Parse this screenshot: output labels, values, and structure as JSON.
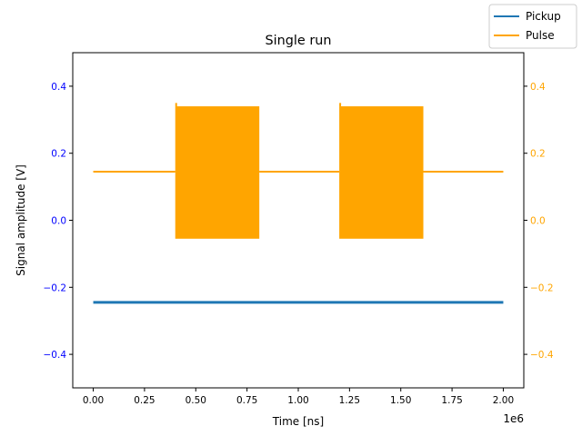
{
  "chart_data": {
    "type": "line",
    "title": "Single run",
    "xlabel": "Time [ns]",
    "ylabel": "Signal amplitude [V]",
    "x_offset_label": "1e6",
    "xlim": [
      -0.1,
      2.1
    ],
    "ylim": [
      -0.5,
      0.5
    ],
    "y2lim": [
      -0.5,
      0.5
    ],
    "x_ticks": [
      0.0,
      0.25,
      0.5,
      0.75,
      1.0,
      1.25,
      1.5,
      1.75,
      2.0
    ],
    "x_tick_labels": [
      "0.00",
      "0.25",
      "0.50",
      "0.75",
      "1.00",
      "1.25",
      "1.50",
      "1.75",
      "2.00"
    ],
    "y_ticks": [
      -0.4,
      -0.2,
      0.0,
      0.2,
      0.4
    ],
    "y_tick_labels": [
      "−0.4",
      "−0.2",
      "0.0",
      "0.2",
      "0.4"
    ],
    "y2_ticks": [
      -0.4,
      -0.2,
      0.0,
      0.2,
      0.4
    ],
    "y2_tick_labels": [
      "−0.4",
      "−0.2",
      "0.0",
      "0.2",
      "0.4"
    ],
    "legend_position": "top-right",
    "series": [
      {
        "name": "Pickup",
        "axis": "left",
        "color": "#1f77b4",
        "x": [
          0.0,
          2.0
        ],
        "y": [
          -0.245,
          -0.245
        ]
      },
      {
        "name": "Pulse",
        "axis": "right",
        "color": "#ffa500",
        "x": [
          0.0,
          0.4,
          0.4,
          0.81,
          0.81,
          1.2,
          1.2,
          1.61,
          1.61,
          2.0
        ],
        "y": [
          0.145,
          0.145,
          0.345,
          0.345,
          0.145,
          0.145,
          0.345,
          0.345,
          0.145,
          0.145
        ],
        "bursts": [
          {
            "start": 0.4,
            "end": 0.81,
            "high": 0.34,
            "low": -0.055,
            "peak": 0.35
          },
          {
            "start": 1.2,
            "end": 1.61,
            "high": 0.34,
            "low": -0.055,
            "peak": 0.35
          }
        ]
      }
    ]
  }
}
